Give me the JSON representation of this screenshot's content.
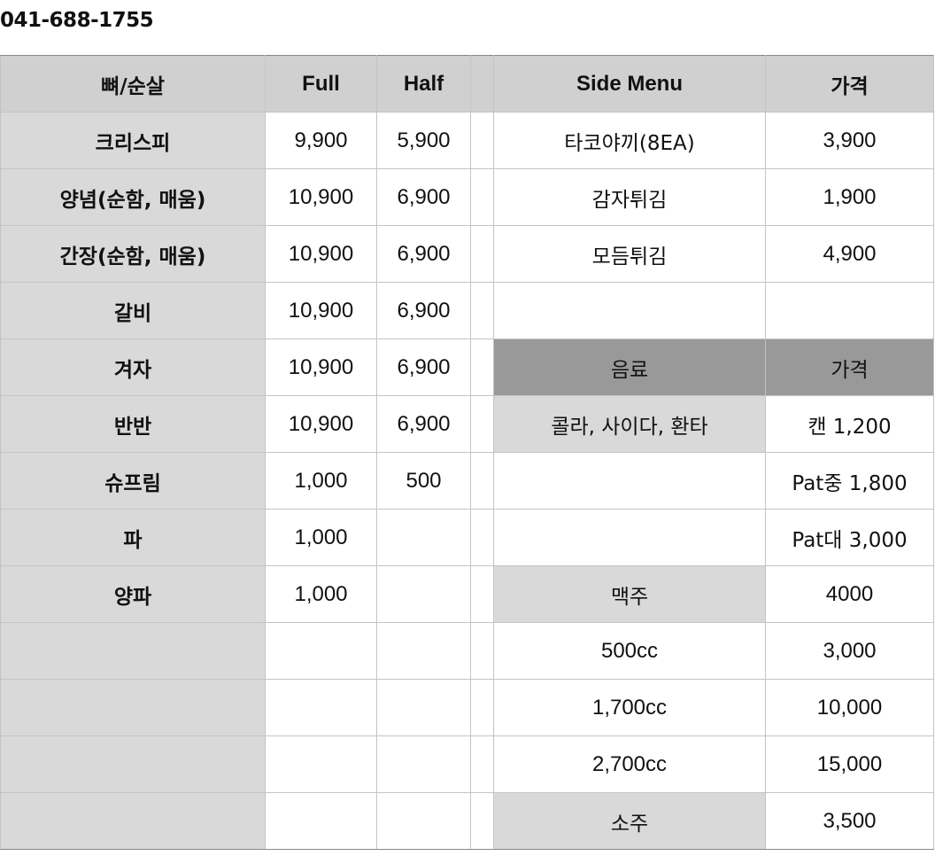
{
  "phone": "041-688-1755",
  "header": {
    "category": "뼈/순살",
    "full": "Full",
    "half": "Half",
    "side_menu": "Side Menu",
    "price": "가격"
  },
  "rows": [
    {
      "name": "크리스피",
      "full": "9,900",
      "half": "5,900",
      "side": "타코야끼(8EA)",
      "side_price": "3,900"
    },
    {
      "name": "양념(순함, 매움)",
      "full": "10,900",
      "half": "6,900",
      "side": "감자튀김",
      "side_price": "1,900"
    },
    {
      "name": "간장(순함, 매움)",
      "full": "10,900",
      "half": "6,900",
      "side": "모듬튀김",
      "side_price": "4,900"
    },
    {
      "name": "갈비",
      "full": "10,900",
      "half": "6,900",
      "side": "",
      "side_price": ""
    },
    {
      "name": "겨자",
      "full": "10,900",
      "half": "6,900",
      "side": "음료",
      "side_price": "가격"
    },
    {
      "name": "반반",
      "full": "10,900",
      "half": "6,900",
      "side": "콜라, 사이다, 환타",
      "side_price": "캔 1,200"
    },
    {
      "name": "슈프림",
      "full": "1,000",
      "half": "500",
      "side": "",
      "side_price": "Pat중 1,800"
    },
    {
      "name": "파",
      "full": "1,000",
      "half": "",
      "side": "",
      "side_price": "Pat대 3,000"
    },
    {
      "name": "양파",
      "full": "1,000",
      "half": "",
      "side": "맥주",
      "side_price": "4000"
    },
    {
      "name": "",
      "full": "",
      "half": "",
      "side": "500cc",
      "side_price": "3,000"
    },
    {
      "name": "",
      "full": "",
      "half": "",
      "side": "1,700cc",
      "side_price": "10,000"
    },
    {
      "name": "",
      "full": "",
      "half": "",
      "side": "2,700cc",
      "side_price": "15,000"
    },
    {
      "name": "",
      "full": "",
      "half": "",
      "side": "소주",
      "side_price": "3,500"
    }
  ]
}
